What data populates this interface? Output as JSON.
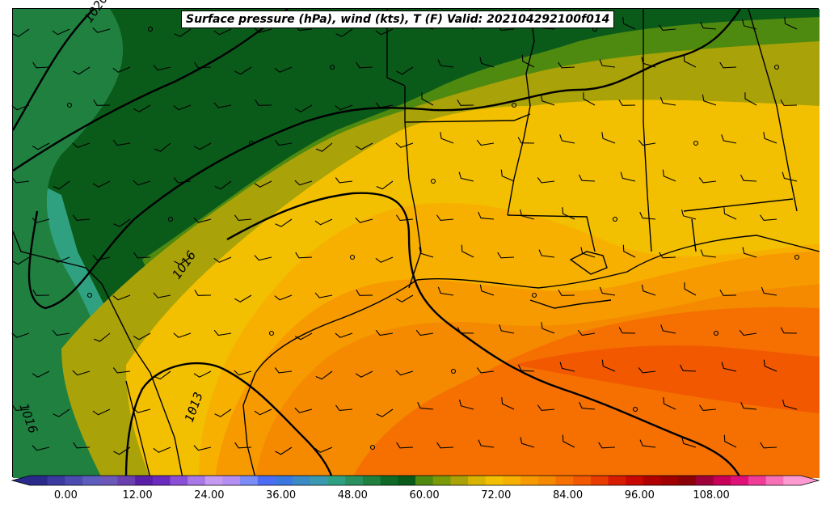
{
  "title": "Surface pressure (hPa), wind (kts), T (F) Valid: 202104292100f014",
  "isobar_labels": [
    "1016",
    "1013",
    "1016",
    "1020"
  ],
  "colorbar": {
    "tick_labels": [
      "0.00",
      "12.00",
      "24.00",
      "36.00",
      "48.00",
      "60.00",
      "72.00",
      "84.00",
      "96.00",
      "108.00"
    ],
    "range": [
      -6,
      123
    ],
    "colors": [
      "#2a2a8a",
      "#3b3aa0",
      "#4b4bb0",
      "#5d5dbe",
      "#6b58b8",
      "#6a3fb0",
      "#5a1fa8",
      "#6b2bbf",
      "#8a4fd6",
      "#a878e6",
      "#c49af0",
      "#b48ef2",
      "#7a8cf6",
      "#4d6cf5",
      "#3a78e0",
      "#3a8ac6",
      "#3a99b0",
      "#2fa080",
      "#2a9060",
      "#1f8040",
      "#0f6a28",
      "#0a5a1a",
      "#4f8a10",
      "#7a9a08",
      "#a9a208",
      "#d8b400",
      "#f2c000",
      "#f7b000",
      "#f79a00",
      "#f58a00",
      "#f57000",
      "#f25800",
      "#e83c00",
      "#d81c00",
      "#c80800",
      "#b00000",
      "#a00000",
      "#8c0008",
      "#a0003a",
      "#c8005a",
      "#e0107a",
      "#f03c98",
      "#f871b8",
      "#ff9ad0"
    ],
    "color_scale": "temperature (F)"
  },
  "regions": {
    "temp_colors": {
      "t48": "#2fa080",
      "t56": "#1f8040",
      "t58": "#0a5a1a",
      "t60": "#4f8a10",
      "t63": "#a9a208",
      "t66": "#f2c000",
      "t69": "#f7b000",
      "t72": "#f79a00",
      "t75": "#f58a00",
      "t78": "#f57000",
      "t81": "#f25800"
    }
  }
}
